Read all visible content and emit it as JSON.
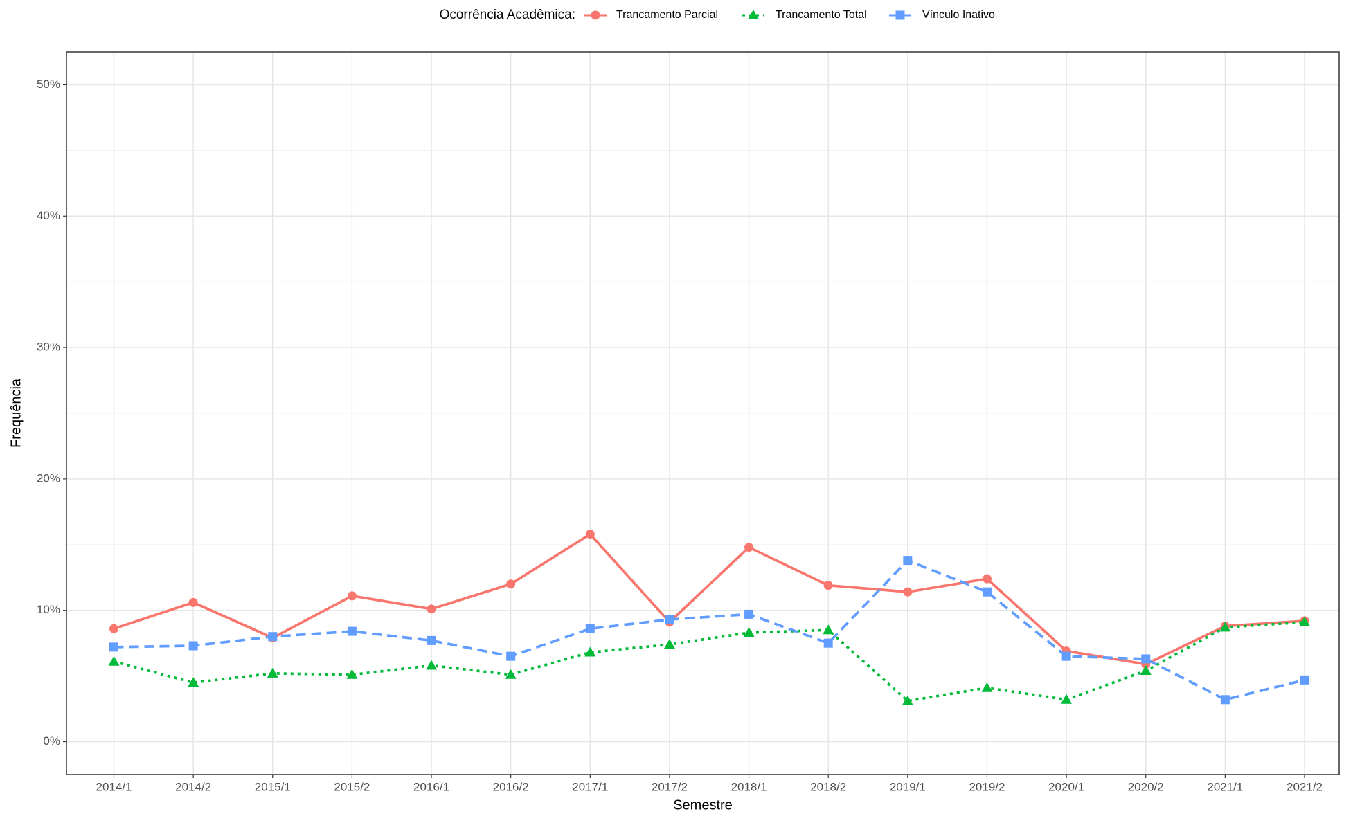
{
  "chart_data": {
    "type": "line",
    "legend_title": "Ocorrência Acadêmica:",
    "legend_position": "top",
    "x_label": "Semestre",
    "y_label": "Frequência",
    "categories": [
      "2014/1",
      "2014/2",
      "2015/1",
      "2015/2",
      "2016/1",
      "2016/2",
      "2017/1",
      "2017/2",
      "2018/1",
      "2018/2",
      "2019/1",
      "2019/2",
      "2020/1",
      "2020/2",
      "2021/1",
      "2021/2"
    ],
    "series": [
      {
        "name": "Trancamento Parcial",
        "color": "#F8766D",
        "dash": "solid",
        "marker": "circle",
        "values": [
          8.6,
          10.6,
          7.9,
          11.1,
          10.1,
          12.0,
          15.8,
          9.1,
          14.8,
          11.9,
          11.4,
          12.4,
          6.9,
          5.9,
          8.8,
          9.2
        ]
      },
      {
        "name": "Trancamento Total",
        "color": "#00BA38",
        "dash": "dotted",
        "marker": "triangle",
        "values": [
          6.1,
          4.5,
          5.2,
          5.1,
          5.8,
          5.1,
          6.8,
          7.4,
          8.3,
          8.5,
          3.1,
          4.1,
          3.2,
          5.4,
          8.7,
          9.1
        ]
      },
      {
        "name": "Vínculo Inativo",
        "color": "#619CFF",
        "dash": "dashed",
        "marker": "square",
        "values": [
          7.2,
          7.3,
          8.0,
          8.4,
          7.7,
          6.5,
          8.6,
          9.3,
          9.7,
          7.5,
          13.8,
          11.4,
          6.5,
          6.3,
          3.2,
          4.7
        ]
      }
    ],
    "ylim": [
      -2.5,
      52.5
    ],
    "yticks": [
      {
        "value": 0,
        "label": "0%"
      },
      {
        "value": 10,
        "label": "10%"
      },
      {
        "value": 20,
        "label": "20%"
      },
      {
        "value": 30,
        "label": "30%"
      },
      {
        "value": 40,
        "label": "40%"
      },
      {
        "value": 50,
        "label": "50%"
      }
    ],
    "minor_yticks": [
      5,
      15,
      25,
      35,
      45
    ],
    "grid": true
  }
}
